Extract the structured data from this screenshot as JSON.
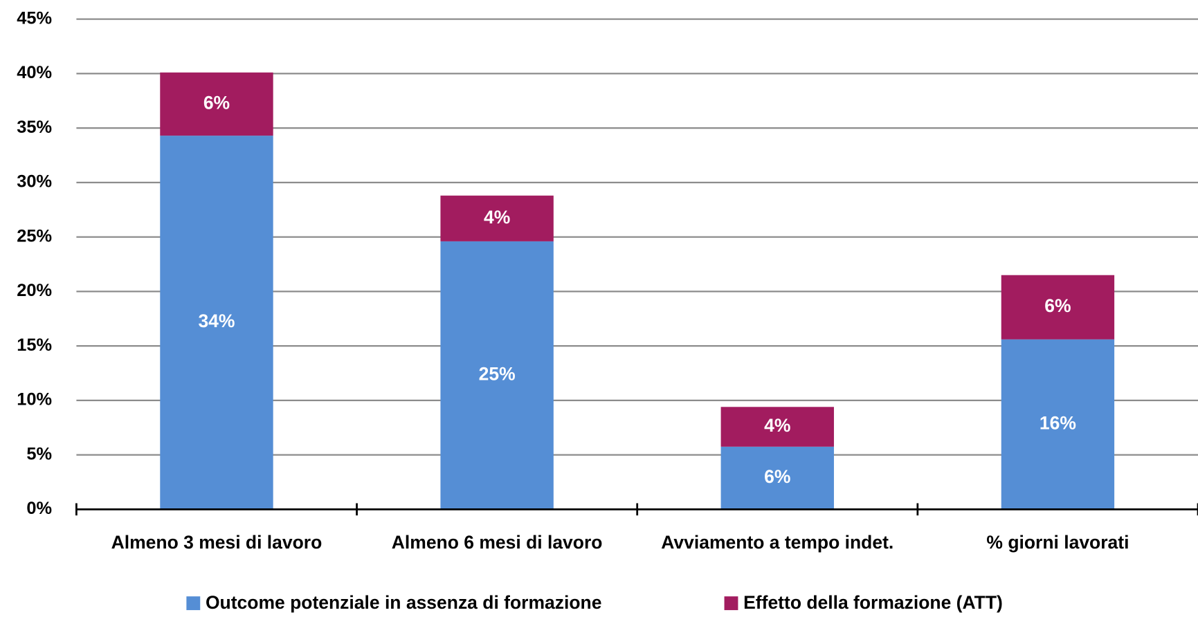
{
  "chart_data": {
    "type": "stacked_bar",
    "categories": [
      "Almeno 3 mesi di lavoro",
      "Almeno 6 mesi di lavoro",
      "Avviamento a tempo indet.",
      "% giorni lavorati"
    ],
    "series": [
      {
        "name": "Outcome potenziale in assenza di formazione",
        "color": "#558ed5",
        "values": [
          34.3,
          24.6,
          5.75,
          15.6
        ],
        "value_labels": [
          "34%",
          "25%",
          "6%",
          "16%"
        ]
      },
      {
        "name": "Effetto della formazione (ATT)",
        "color": "#a21c5f",
        "values": [
          5.8,
          4.2,
          3.65,
          5.9
        ],
        "value_labels": [
          "6%",
          "4%",
          "4%",
          "6%"
        ]
      }
    ],
    "ylim": [
      0,
      45
    ],
    "yticks": [
      {
        "value": 0,
        "label": "0%"
      },
      {
        "value": 5,
        "label": "5%"
      },
      {
        "value": 10,
        "label": "10%"
      },
      {
        "value": 15,
        "label": "15%"
      },
      {
        "value": 20,
        "label": "20%"
      },
      {
        "value": 25,
        "label": "25%"
      },
      {
        "value": 30,
        "label": "30%"
      },
      {
        "value": 35,
        "label": "35%"
      },
      {
        "value": 40,
        "label": "40%"
      },
      {
        "value": 45,
        "label": "45%"
      }
    ],
    "grid": true,
    "legend": "bottom"
  }
}
